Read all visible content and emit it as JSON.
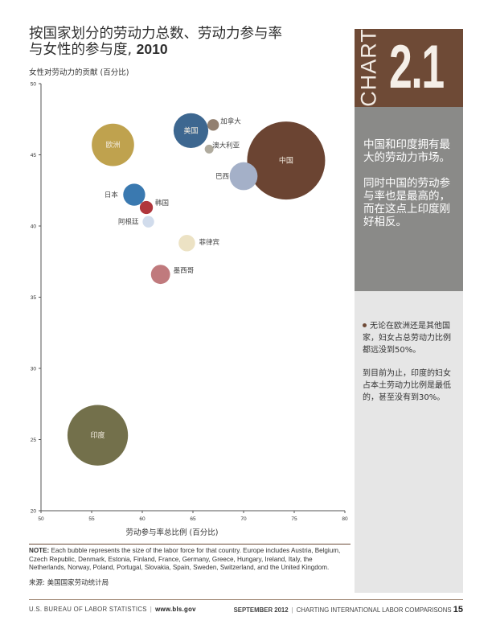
{
  "title": {
    "line1": "按国家划分的劳动力总数、劳动力参与率",
    "line2_prefix": "与女性的参与度, ",
    "line2_year": "2010"
  },
  "chart_data": {
    "type": "scatter",
    "title": "按国家划分的劳动力总数、劳动力参与率与女性的参与度, 2010",
    "xlabel": "劳动参与率总比例 (百分比)",
    "ylabel": "女性对劳动力的贡献 (百分比)",
    "xlim": [
      50,
      80
    ],
    "ylim": [
      20,
      50
    ],
    "x_ticks": [
      "50",
      "55",
      "60",
      "65",
      "70",
      "75",
      "80"
    ],
    "y_ticks": [
      "20",
      "25",
      "30",
      "35",
      "40",
      "45",
      "50"
    ],
    "grid": false,
    "points": [
      {
        "label": "中国",
        "x": 74.2,
        "y": 44.6,
        "size": 780,
        "color": "#6b4432",
        "label_inside": true
      },
      {
        "label": "印度",
        "x": 55.6,
        "y": 25.3,
        "size": 470,
        "color": "#73704b",
        "label_inside": true
      },
      {
        "label": "欧洲",
        "x": 57.1,
        "y": 45.7,
        "size": 230,
        "color": "#bfa24e",
        "label_inside": true
      },
      {
        "label": "美国",
        "x": 64.8,
        "y": 46.7,
        "size": 155,
        "color": "#3d6790",
        "label_inside": true
      },
      {
        "label": "巴西",
        "x": 70.0,
        "y": 43.5,
        "size": 100,
        "color": "#a4b0c8",
        "label_inside": false
      },
      {
        "label": "日本",
        "x": 59.2,
        "y": 42.2,
        "size": 62,
        "color": "#3a79b0",
        "label_inside": false
      },
      {
        "label": "墨西哥",
        "x": 61.8,
        "y": 36.6,
        "size": 47,
        "color": "#c07a7d",
        "label_inside": false
      },
      {
        "label": "菲律宾",
        "x": 64.4,
        "y": 38.8,
        "size": 35,
        "color": "#ece2c4",
        "label_inside": false
      },
      {
        "label": "韩国",
        "x": 60.4,
        "y": 41.3,
        "size": 22,
        "color": "#b0363c",
        "label_inside": false
      },
      {
        "label": "加拿大",
        "x": 67.0,
        "y": 47.1,
        "size": 17,
        "color": "#938070",
        "label_inside": false
      },
      {
        "label": "阿根廷",
        "x": 60.6,
        "y": 40.3,
        "size": 17,
        "color": "#d1dcec",
        "label_inside": false
      },
      {
        "label": "澳大利亚",
        "x": 66.6,
        "y": 45.4,
        "size": 10,
        "color": "#b0ab9e",
        "label_inside": false
      }
    ]
  },
  "note": {
    "label": "NOTE:",
    "text": "Each bubble represents the size of the labor force for that country. Europe includes  Austria, Belgium, Czech Republic, Denmark, Estonia, Finland, France, Germany, Greece, Hungary, Ireland, Italy, the Netherlands, Norway, Poland, Portugal, Slovakia, Spain, Sweden, Switzerland, and the United Kingdom."
  },
  "source": "来源: 美国国家劳动统计局",
  "sidebar": {
    "badge_word": "CHART",
    "badge_number": "2.1",
    "highlight_1": "中国和印度拥有最大的劳动力市场。",
    "highlight_2": "同时中国的劳动参与率也是最高的，而在这点上印度刚好相反。",
    "bullet_1": "无论在欧洲还是其他国家，妇女占总劳动力比例都远没到50%。",
    "bullet_2": "到目前为止，印度的妇女占本土劳动力比例是最低的，甚至没有到30%。"
  },
  "footer": {
    "left": "U.S. BUREAU OF LABOR STATISTICS",
    "website": "www.bls.gov",
    "date": "SEPTEMBER 2012",
    "series": "CHARTING INTERNATIONAL LABOR COMPARISONS",
    "page": "15"
  },
  "colors": {
    "accent_brown": "#6e4a36",
    "sidebar_grey": "#8a8a88",
    "sidebar_light": "#e6e6e6"
  }
}
